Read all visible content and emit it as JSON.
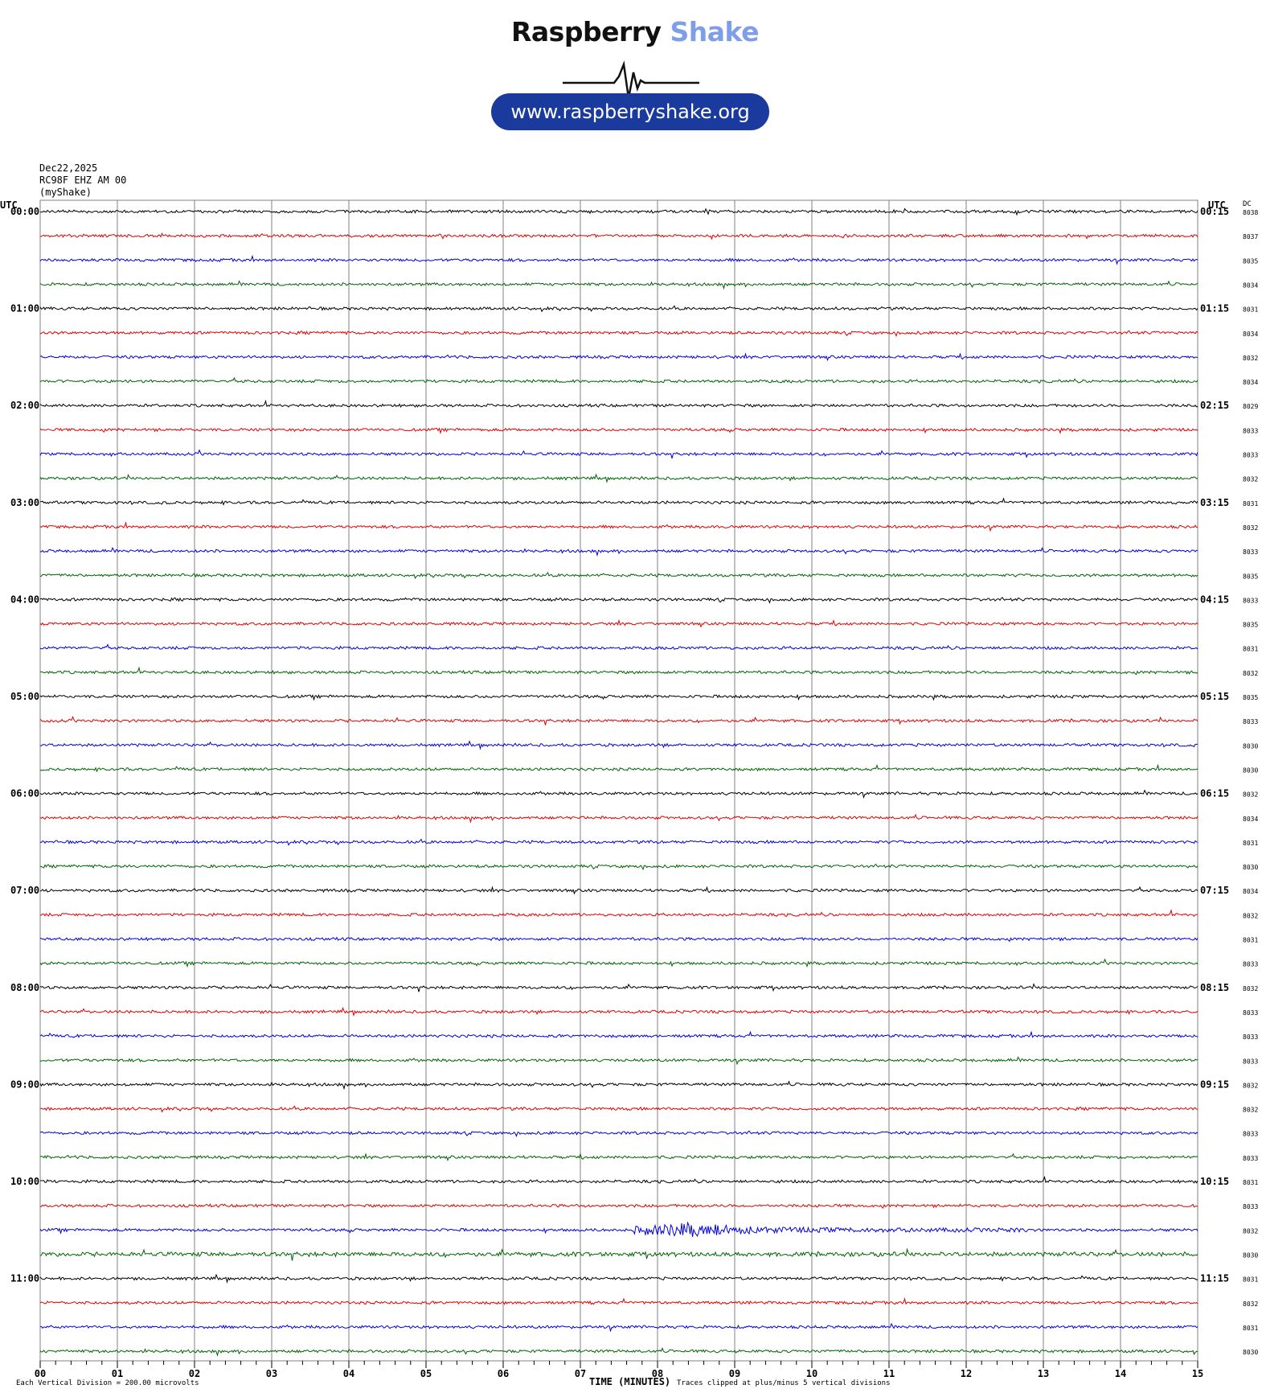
{
  "logo": {
    "brand_a": "Raspberry",
    "brand_b": "Shake",
    "url": "www.raspberryshake.org"
  },
  "header": {
    "date": "Dec22,2025",
    "station": "RC98F EHZ AM 00",
    "source": "(myShake)"
  },
  "footer": {
    "scale": "Each Vertical Division = 200.00 microvolts",
    "xlabel": "TIME (MINUTES)",
    "clip": "Traces clipped at plus/minus 5 vertical divisions"
  },
  "colors": {
    "trace_cycle": [
      "#000000",
      "#e00000",
      "#0000dd",
      "#006400"
    ],
    "grid": "#808080",
    "pill": "#1a3a9e",
    "accent": "#7f9ee9"
  },
  "chart_data": {
    "type": "line",
    "title": "",
    "xlabel": "TIME (MINUTES)",
    "xlim": [
      0,
      15
    ],
    "x_ticks": [
      "00",
      "01",
      "02",
      "03",
      "04",
      "05",
      "06",
      "07",
      "08",
      "09",
      "10",
      "11",
      "12",
      "13",
      "14",
      "15"
    ],
    "left_axis_header": "UTC",
    "right_axis_header": "UTC",
    "dc_header": "DC",
    "left_labels": [
      "00:00",
      "01:00",
      "02:00",
      "03:00",
      "04:00",
      "05:00",
      "06:00",
      "07:00",
      "08:00",
      "09:00",
      "10:00",
      "11:00"
    ],
    "right_labels": [
      "00:15",
      "01:15",
      "02:15",
      "03:15",
      "04:15",
      "05:15",
      "06:15",
      "07:15",
      "08:15",
      "09:15",
      "10:15",
      "11:15"
    ],
    "dc_values": [
      "8038",
      "8037",
      "8035",
      "8034",
      "8031",
      "8034",
      "8032",
      "8034",
      "8029",
      "8033",
      "8033",
      "8032",
      "8031",
      "8032",
      "8033",
      "8035",
      "8033",
      "8035",
      "8031",
      "8032",
      "8035",
      "8033",
      "8030",
      "8030",
      "8032",
      "8034",
      "8031",
      "8030",
      "8034",
      "8032",
      "8031",
      "8033",
      "8032",
      "8033",
      "8033",
      "8033",
      "8032",
      "8032",
      "8033",
      "8033",
      "8031",
      "8033",
      "8032",
      "8030",
      "8031",
      "8032",
      "8031",
      "8030"
    ],
    "traces_per_hour": 4,
    "minutes_per_trace": 15,
    "event": {
      "trace_index": 42,
      "start_minute": 7.7,
      "end_minute": 12.8,
      "peak_minute": 8.4
    }
  }
}
